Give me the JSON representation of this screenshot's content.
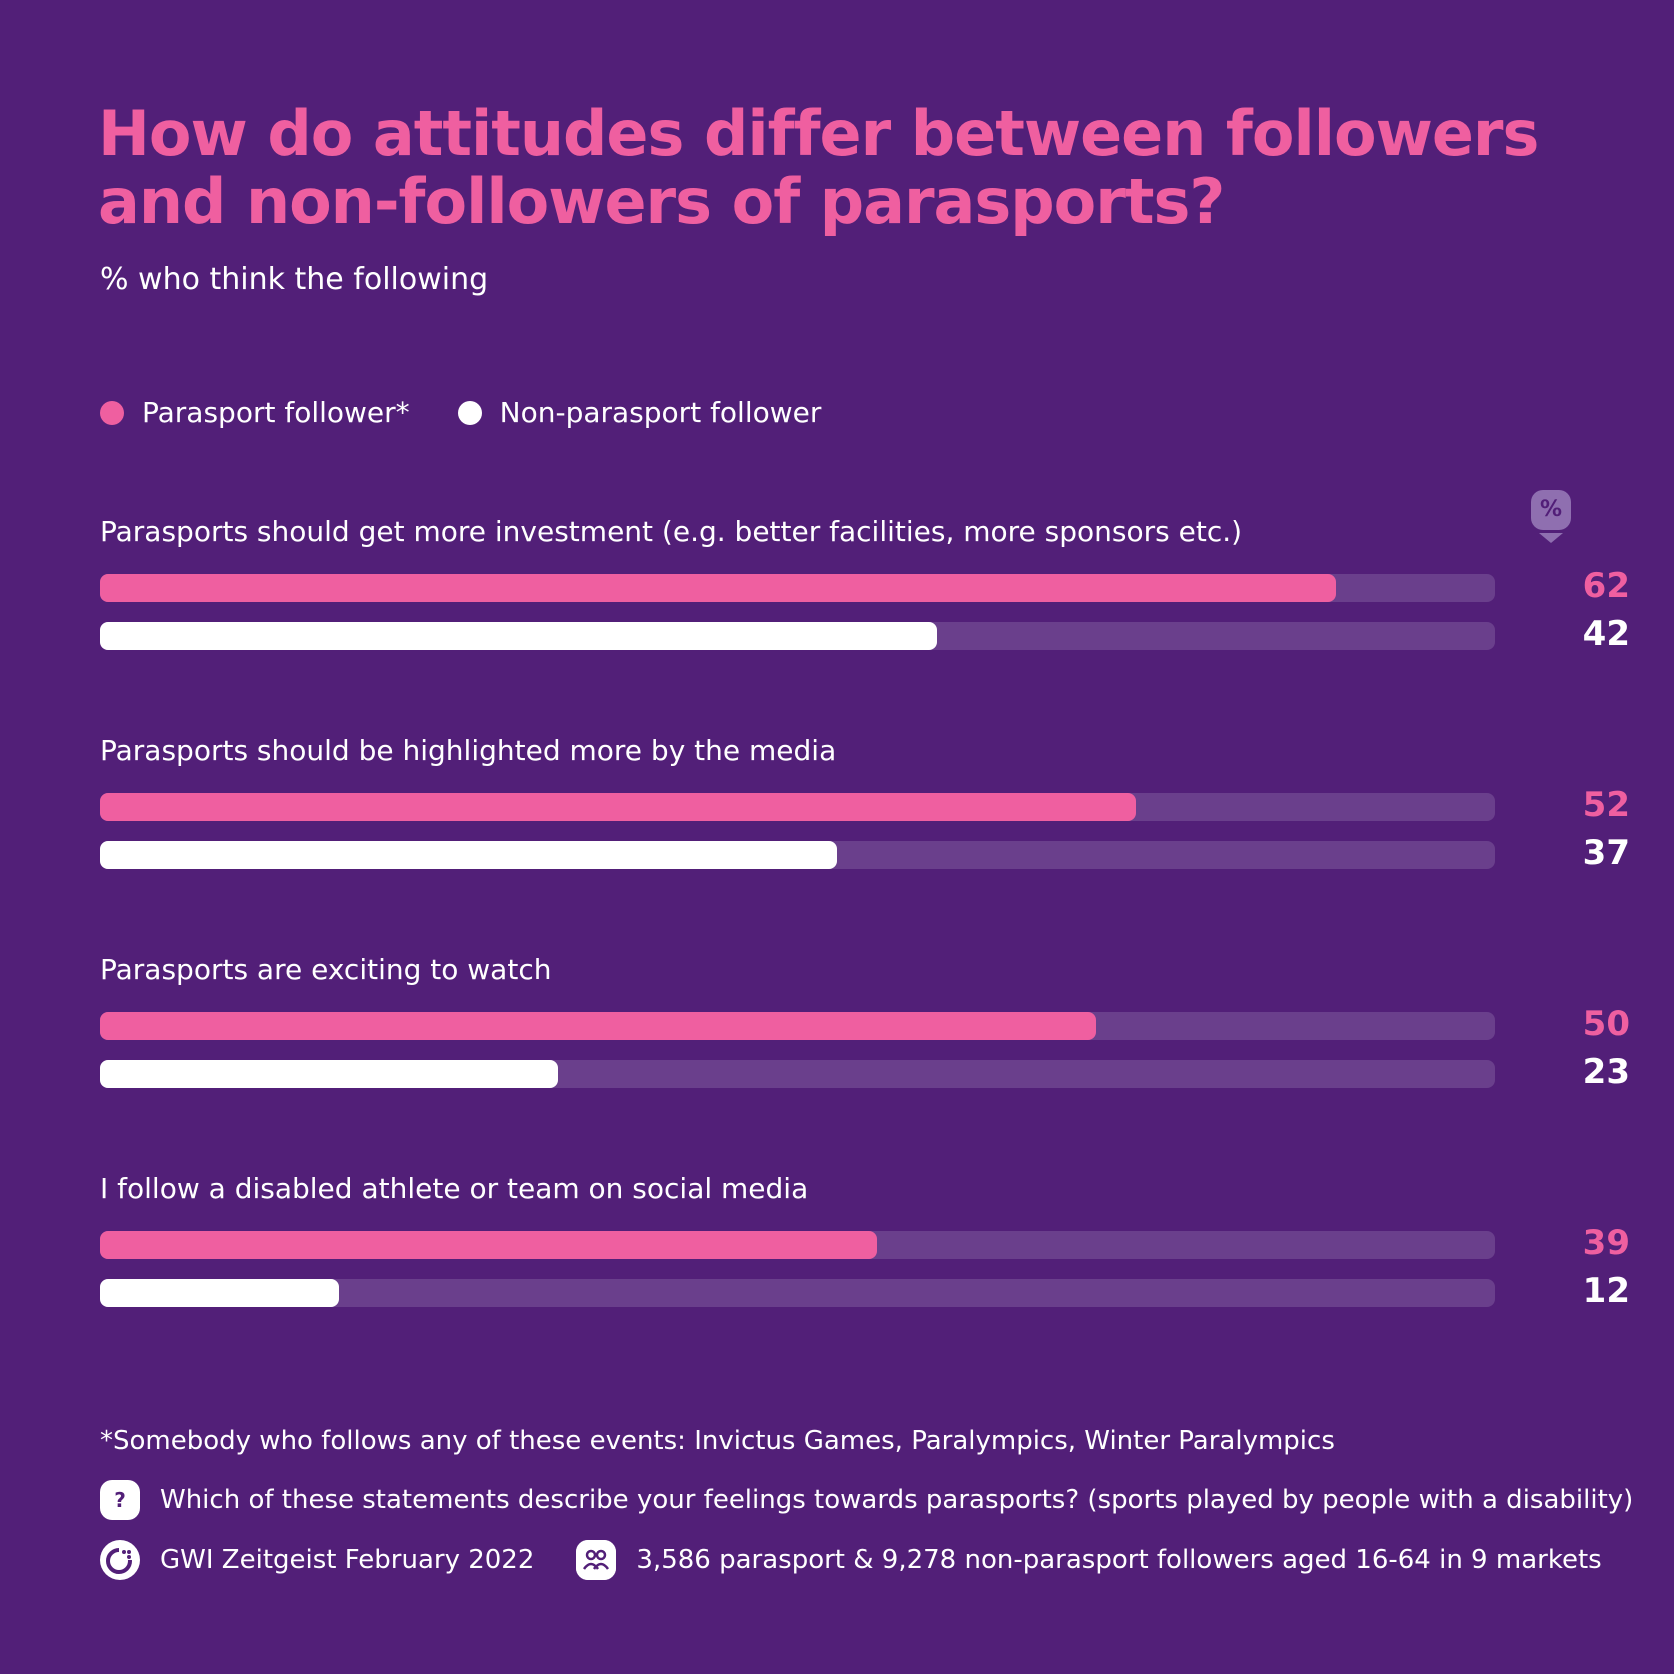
{
  "title": "How do attitudes differ between followers and non-followers of parasports?",
  "subtitle": "% who think the following",
  "colors": {
    "background": "#521f78",
    "follower": "#ef5fa0",
    "non_follower": "#ffffff",
    "track": "#6a3f8c"
  },
  "legend": [
    {
      "label": "Parasport follower*",
      "color": "#ef5fa0"
    },
    {
      "label": "Non-parasport follower",
      "color": "#ffffff"
    }
  ],
  "unit_icon": "%",
  "chart_data": {
    "type": "bar",
    "orientation": "horizontal",
    "categories": [
      "Parasports should get more investment (e.g. better facilities, more sponsors etc.)",
      "Parasports should be highlighted more by the media",
      "Parasports are exciting to watch",
      "I follow a disabled athlete or team on social media"
    ],
    "series": [
      {
        "name": "Parasport follower*",
        "values": [
          62,
          52,
          50,
          39
        ]
      },
      {
        "name": "Non-parasport follower",
        "values": [
          42,
          37,
          23,
          12
        ]
      }
    ],
    "xlim": [
      0,
      70
    ],
    "grid": false,
    "legend_position": "top-left"
  },
  "footer": {
    "footnote": "*Somebody who follows any of these events: Invictus Games, Paralympics, Winter Paralympics",
    "question_icon": "?",
    "question": "Which of these statements describe your feelings towards parasports? (sports played by people with a disability)",
    "source": "GWI Zeitgeist February 2022",
    "sample": "3,586 parasport & 9,278 non-parasport followers aged 16-64 in 9 markets"
  }
}
